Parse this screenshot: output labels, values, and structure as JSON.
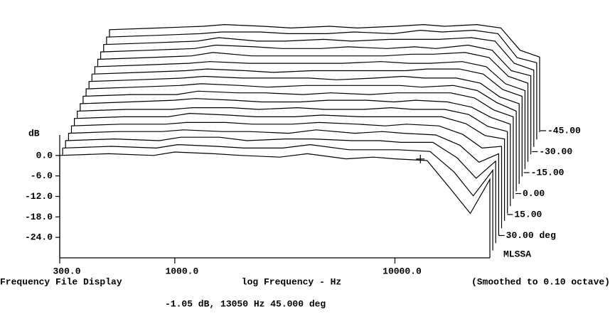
{
  "chart_data": {
    "type": "waterfall",
    "color": "#000000",
    "y_title": "dB",
    "x_title": "log Frequency - Hz",
    "footer_left": "Frequency File Display",
    "footer_right": "(Smoothed to 0.10 octave)",
    "readout": "-1.05 dB, 13050 Hz  45.000 deg",
    "brand": "MLSSA",
    "log_x": true,
    "x": [
      300,
      500,
      800,
      1000,
      1500,
      2000,
      3000,
      4000,
      6000,
      8000,
      10000,
      14000,
      18000,
      22000,
      27000
    ],
    "xlim": [
      300,
      27000
    ],
    "xticks": [
      {
        "value": 300,
        "label": "300.0"
      },
      {
        "value": 1000,
        "label": "1000.0"
      },
      {
        "value": 10000,
        "label": "10000.0"
      }
    ],
    "ylim": [
      -30,
      6
    ],
    "yticks": [
      {
        "value": 0,
        "label": "0.0"
      },
      {
        "value": -6,
        "label": "-6.0"
      },
      {
        "value": -12,
        "label": "-12.0"
      },
      {
        "value": -18,
        "label": "-18.0"
      },
      {
        "value": -24,
        "label": "-24.0"
      }
    ],
    "zlim": [
      -45,
      45
    ],
    "zticks": [
      {
        "value": -45,
        "label": "-45.00"
      },
      {
        "value": -30,
        "label": "-30.00"
      },
      {
        "value": -15,
        "label": "-15.00"
      },
      {
        "value": 0,
        "label": "0.00"
      },
      {
        "value": 15,
        "label": "15.00"
      },
      {
        "value": 30,
        "label": "30.00 deg"
      }
    ],
    "cursor": {
      "x": 13050,
      "y": -1.05
    },
    "series": [
      {
        "values": [
          0,
          0.5,
          0,
          1,
          0.5,
          0,
          -0.5,
          0.5,
          -1,
          -0.5,
          -1,
          -1.5,
          -10,
          -17,
          -7
        ]
      },
      {
        "values": [
          0,
          0.5,
          0,
          1,
          0.5,
          0,
          0,
          1,
          -0.5,
          -0.5,
          -0.5,
          -1,
          -7,
          -14,
          -6.5
        ]
      },
      {
        "values": [
          0,
          0.5,
          0,
          1,
          1,
          0,
          0.5,
          0.5,
          0,
          0,
          -0.5,
          -0.5,
          -5,
          -11,
          -6
        ]
      },
      {
        "values": [
          0,
          0.5,
          0.5,
          1,
          0.5,
          0.5,
          0,
          1,
          0,
          0.5,
          0,
          -0.5,
          -3.5,
          -8.5,
          -6
        ]
      },
      {
        "values": [
          0,
          0.5,
          0.5,
          1,
          1,
          0.5,
          0.5,
          1,
          0.5,
          0,
          0.5,
          0,
          -2.5,
          -6.5,
          -6
        ]
      },
      {
        "values": [
          0,
          0.5,
          0.5,
          1.5,
          1,
          0.5,
          0.5,
          1,
          0.5,
          0.5,
          0.5,
          0.5,
          -1.5,
          -5,
          -6
        ]
      },
      {
        "values": [
          0,
          0.5,
          0.5,
          1,
          1,
          0.5,
          1,
          0.5,
          0.5,
          1,
          0.5,
          0.5,
          -1,
          -4.5,
          -6
        ]
      },
      {
        "values": [
          0,
          0.5,
          1,
          1.5,
          1,
          0.5,
          0.5,
          1,
          1,
          0.5,
          1,
          0.5,
          -1,
          -4,
          -6
        ]
      },
      {
        "values": [
          0,
          0.5,
          0.5,
          1.5,
          1,
          1,
          0.5,
          1,
          0.5,
          1,
          1,
          1,
          -0.5,
          -4,
          -6
        ]
      },
      {
        "values": [
          0,
          0.5,
          1,
          1.5,
          1,
          0.5,
          1,
          1,
          1,
          1,
          0.5,
          1,
          -0.5,
          -4,
          -6.5
        ]
      },
      {
        "values": [
          0,
          0.5,
          1,
          1.5,
          1,
          1,
          1,
          0.5,
          1,
          1.5,
          1,
          1,
          -0.5,
          -4.5,
          -6.5
        ]
      },
      {
        "values": [
          0,
          0.5,
          1,
          1.5,
          1,
          0.5,
          1,
          1,
          1,
          1,
          1.5,
          1.5,
          0,
          -4.5,
          -6.5
        ]
      },
      {
        "values": [
          0,
          0.5,
          1,
          1.5,
          1,
          1,
          1,
          1,
          1.5,
          1,
          1,
          1.5,
          0,
          -5,
          -7
        ]
      },
      {
        "values": [
          0,
          0.5,
          1,
          2,
          1,
          1,
          1,
          1,
          1,
          1.5,
          1.5,
          2,
          0.5,
          -5,
          -7
        ]
      },
      {
        "values": [
          0,
          0.5,
          1,
          2,
          1.5,
          1,
          1,
          1.5,
          1,
          1.5,
          1,
          2,
          0.5,
          -5.5,
          -7
        ]
      },
      {
        "values": [
          0,
          0.5,
          1,
          2,
          1,
          1,
          1.5,
          1,
          1.5,
          1.5,
          1.5,
          2,
          1,
          -5.5,
          -7.5
        ]
      },
      {
        "values": [
          0,
          0.5,
          1,
          1.5,
          1.5,
          1,
          1,
          1.5,
          1,
          2,
          1.5,
          2,
          1,
          -6,
          -7.5
        ]
      },
      {
        "values": [
          0,
          0.5,
          1,
          1.5,
          1,
          0.5,
          1,
          0.5,
          1,
          1.5,
          1,
          1.5,
          0.5,
          -6,
          -8
        ]
      }
    ]
  }
}
